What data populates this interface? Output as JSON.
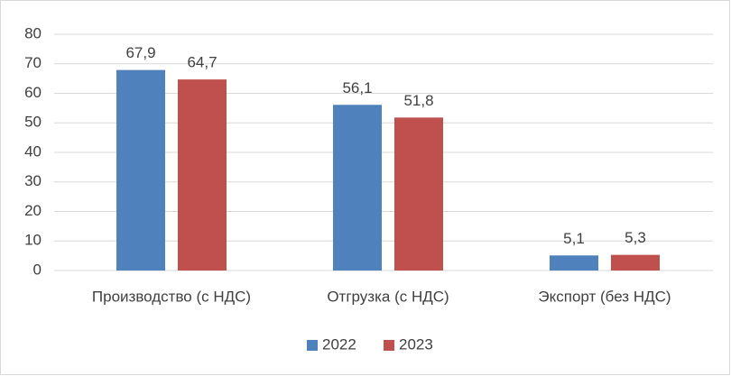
{
  "chart_data": {
    "type": "bar",
    "categories": [
      "Производство (с НДС)",
      "Отгрузка (с НДС)",
      "Экспорт (без НДС)"
    ],
    "series": [
      {
        "name": "2022",
        "color": "#4f81bd",
        "values": [
          67.9,
          56.1,
          5.1
        ],
        "value_labels": [
          "67,9",
          "56,1",
          "5,1"
        ]
      },
      {
        "name": "2023",
        "color": "#c0504d",
        "values": [
          64.7,
          51.8,
          5.3
        ],
        "value_labels": [
          "64,7",
          "51,8",
          "5,3"
        ]
      }
    ],
    "ylim": [
      0,
      80
    ],
    "yticks": [
      0,
      10,
      20,
      30,
      40,
      50,
      60,
      70,
      80
    ],
    "grid": true,
    "legend": "bottom"
  }
}
